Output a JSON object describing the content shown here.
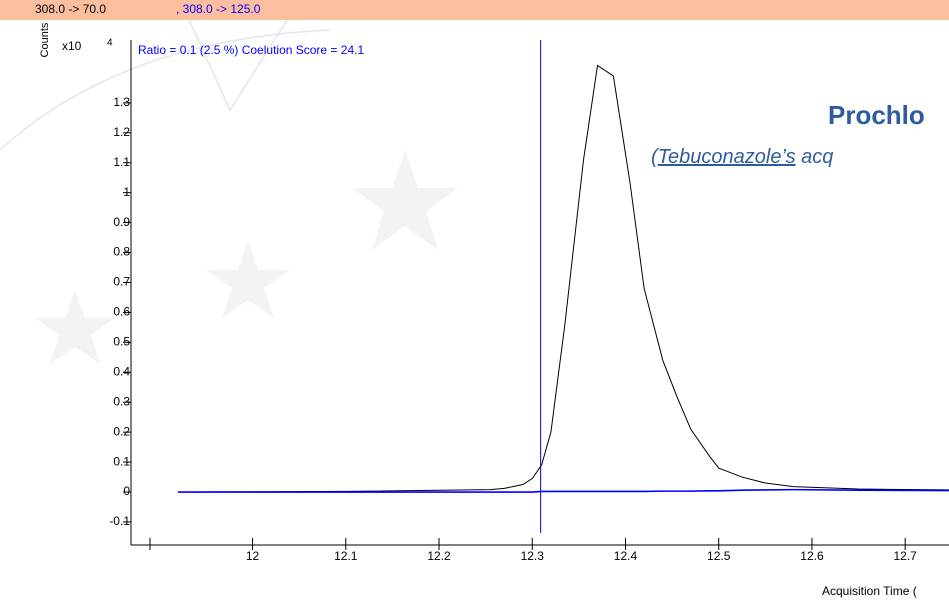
{
  "chart_data": {
    "type": "line",
    "title": "Prochlo",
    "subtitle_prefix": "(",
    "subtitle_link": "Tebuconazole’s",
    "subtitle_rest": " acq",
    "annotation": "Ratio = 0.1 (2.5 %) Coelution Score = 24.1",
    "y_label": "Counts",
    "y_scale_base": "x10",
    "y_scale_exponent": "4",
    "x_label": "Acquisition Time (",
    "marker_x": 12.309,
    "x": [
      11.92,
      12.1,
      12.255,
      12.27,
      12.29,
      12.3,
      12.31,
      12.32,
      12.335,
      12.355,
      12.37,
      12.387,
      12.405,
      12.42,
      12.44,
      12.455,
      12.47,
      12.49,
      12.5,
      12.525,
      12.55,
      12.58,
      12.65,
      12.747
    ],
    "series": [
      {
        "name": "308.0 -> 70.0",
        "color": "#000000",
        "values": [
          0,
          0.002,
          0.008,
          0.012,
          0.025,
          0.045,
          0.09,
          0.2,
          0.56,
          1.11,
          1.425,
          1.39,
          1.03,
          0.68,
          0.44,
          0.32,
          0.21,
          0.12,
          0.08,
          0.05,
          0.03,
          0.018,
          0.01,
          0.007
        ]
      },
      {
        "name": ", 308.0 -> 125.0",
        "color": "#0000ff",
        "values": [
          0,
          0,
          0,
          0,
          0,
          0,
          0.002,
          0.002,
          0.002,
          0.002,
          0.002,
          0.002,
          0.002,
          0.002,
          0.003,
          0.003,
          0.003,
          0.004,
          0.004,
          0.006,
          0.007,
          0.008,
          0.006,
          0.005
        ]
      }
    ],
    "xlim": [
      11.89,
      12.747
    ],
    "xticks": [
      12,
      12.1,
      12.2,
      12.3,
      12.4,
      12.5,
      12.6,
      12.7
    ],
    "ylim": [
      -0.177,
      1.51
    ],
    "yticks": [
      -0.1,
      0,
      0.1,
      0.2,
      0.3,
      0.4,
      0.5,
      0.6,
      0.7,
      0.8,
      0.9,
      1,
      1.1,
      1.2,
      1.3
    ]
  }
}
